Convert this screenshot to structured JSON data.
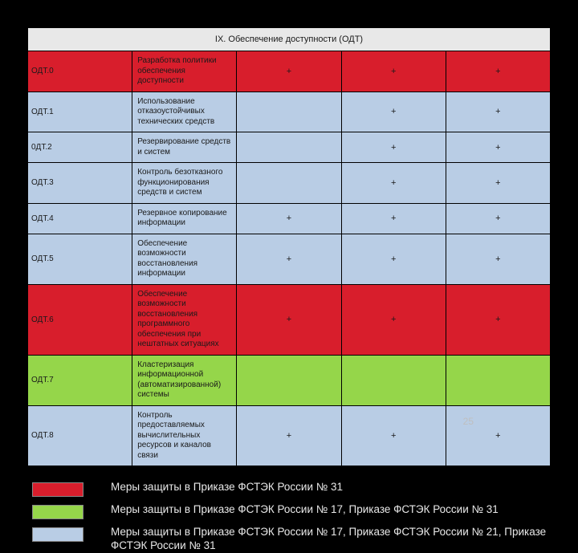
{
  "colors": {
    "red": "#d81e2c",
    "green": "#95d64a",
    "blue": "#b9cde5",
    "header": "#e8e8e8",
    "background": "#000000"
  },
  "table": {
    "header": "IX. Обеспечение доступности (ОДТ)",
    "col_widths": {
      "code": 54,
      "mark": 55
    },
    "rows": [
      {
        "code": "ОДТ.0",
        "desc": "Разработка политики обеспечения доступности",
        "marks": [
          "+",
          "+",
          "+"
        ],
        "color": "red"
      },
      {
        "code": "ОДТ.1",
        "desc": "Использование отказоустойчивых технических средств",
        "marks": [
          "",
          "+",
          "+"
        ],
        "color": "blue"
      },
      {
        "code": "0ДТ.2",
        "desc": "Резервирование средств и систем",
        "marks": [
          "",
          "+",
          "+"
        ],
        "color": "blue"
      },
      {
        "code": "ОДТ.3",
        "desc": "Контроль безотказного функционирования средств и систем",
        "marks": [
          "",
          "+",
          "+"
        ],
        "color": "blue"
      },
      {
        "code": "ОДТ.4",
        "desc": "Резервное копирование информации",
        "marks": [
          "+",
          "+",
          "+"
        ],
        "color": "blue"
      },
      {
        "code": "ОДТ.5",
        "desc": "Обеспечение возможности восстановления информации",
        "marks": [
          "+",
          "+",
          "+"
        ],
        "color": "blue"
      },
      {
        "code": "ОДТ.6",
        "desc": "Обеспечение возможности восстановления программного обеспечения при нештатных ситуациях",
        "marks": [
          "+",
          "+",
          "+"
        ],
        "color": "red"
      },
      {
        "code": "ОДТ.7",
        "desc": "Кластеризация информационной (автоматизированной) системы",
        "marks": [
          "",
          "",
          ""
        ],
        "color": "green"
      },
      {
        "code": "ОДТ.8",
        "desc": "Контроль предоставляемых вычислительных ресурсов и каналов связи",
        "marks": [
          "+",
          "+",
          "+"
        ],
        "color": "blue"
      }
    ]
  },
  "legend": [
    {
      "color": "red",
      "text": "Меры защиты в Приказе ФСТЭК  России  № 31"
    },
    {
      "color": "green",
      "text": "Меры защиты в Приказе ФСТЭК России № 17, Приказе ФСТЭК России  № 31"
    },
    {
      "color": "blue",
      "text": "Меры защиты в Приказе ФСТЭК  России № 17, Приказе ФСТЭК  России № 21, Приказе  ФСТЭК  России № 31"
    }
  ],
  "page_number": "25"
}
